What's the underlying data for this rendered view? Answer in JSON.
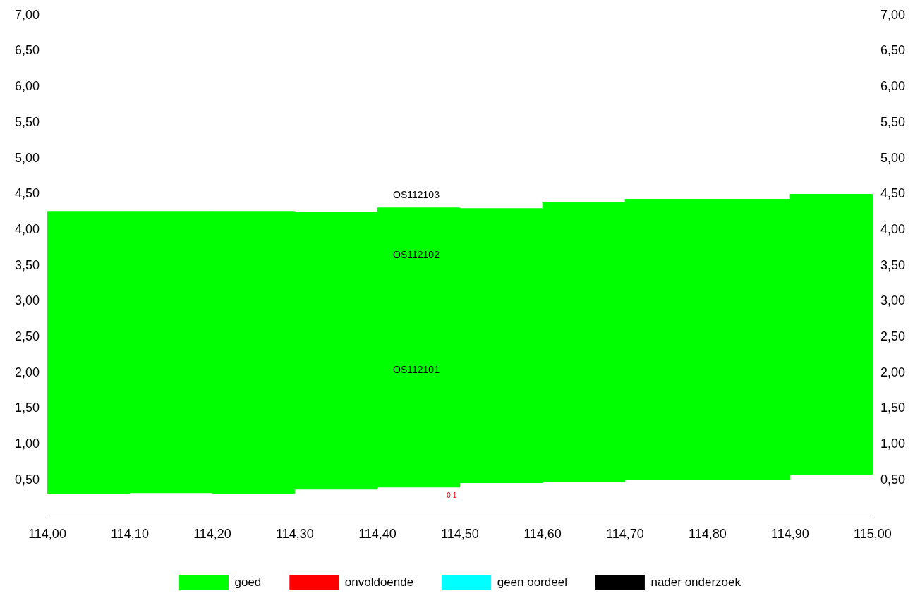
{
  "chart_data": {
    "type": "bar",
    "x": [
      114.05,
      114.15,
      114.25,
      114.35,
      114.45,
      114.55,
      114.65,
      114.75,
      114.85,
      114.95
    ],
    "series": [
      {
        "name": "goed",
        "color": "#00ff00",
        "base": [
          0.31,
          0.32,
          0.31,
          0.37,
          0.4,
          0.46,
          0.47,
          0.51,
          0.51,
          0.58
        ],
        "values": [
          3.95,
          3.94,
          3.95,
          3.88,
          3.91,
          3.84,
          3.91,
          3.92,
          3.92,
          3.92
        ]
      },
      {
        "name": "onvoldoende",
        "color": "#ff0000",
        "values": [
          null,
          null,
          null,
          null,
          null,
          null,
          null,
          null,
          null,
          null
        ]
      },
      {
        "name": "geen oordeel",
        "color": "#00ffff",
        "values": [
          null,
          null,
          null,
          null,
          null,
          null,
          null,
          null,
          null,
          null
        ]
      },
      {
        "name": "nader onderzoek",
        "color": "#000000",
        "values": [
          null,
          null,
          null,
          null,
          null,
          null,
          null,
          null,
          null,
          null
        ]
      }
    ],
    "xlim": [
      114,
      115
    ],
    "xticks": [
      {
        "value": 114,
        "label": "114,00"
      },
      {
        "value": 114.1,
        "label": "114,10"
      },
      {
        "value": 114.2,
        "label": "114,20"
      },
      {
        "value": 114.3,
        "label": "114,30"
      },
      {
        "value": 114.4,
        "label": "114,40"
      },
      {
        "value": 114.5,
        "label": "114,50"
      },
      {
        "value": 114.6,
        "label": "114,60"
      },
      {
        "value": 114.7,
        "label": "114,70"
      },
      {
        "value": 114.8,
        "label": "114,80"
      },
      {
        "value": 114.9,
        "label": "114,90"
      },
      {
        "value": 115,
        "label": "115,00"
      }
    ],
    "ylim": [
      0,
      7
    ],
    "yticks": [
      {
        "value": 0.5,
        "label": "0,50"
      },
      {
        "value": 1,
        "label": "1,00"
      },
      {
        "value": 1.5,
        "label": "1,50"
      },
      {
        "value": 2,
        "label": "2,00"
      },
      {
        "value": 2.5,
        "label": "2,50"
      },
      {
        "value": 3,
        "label": "3,00"
      },
      {
        "value": 3.5,
        "label": "3,50"
      },
      {
        "value": 4,
        "label": "4,00"
      },
      {
        "value": 4.5,
        "label": "4,50"
      },
      {
        "value": 5,
        "label": "5,00"
      },
      {
        "value": 5.5,
        "label": "5,50"
      },
      {
        "value": 6,
        "label": "6,00"
      },
      {
        "value": 6.5,
        "label": "6,50"
      },
      {
        "value": 7,
        "label": "7,00"
      }
    ],
    "y2lim": [
      0,
      7
    ],
    "y2ticks": [
      {
        "value": 0.5,
        "label": "0,50"
      },
      {
        "value": 1,
        "label": "1,00"
      },
      {
        "value": 1.5,
        "label": "1,50"
      },
      {
        "value": 2,
        "label": "2,00"
      },
      {
        "value": 2.5,
        "label": "2,50"
      },
      {
        "value": 3,
        "label": "3,00"
      },
      {
        "value": 3.5,
        "label": "3,50"
      },
      {
        "value": 4,
        "label": "4,00"
      },
      {
        "value": 4.5,
        "label": "4,50"
      },
      {
        "value": 5,
        "label": "5,00"
      },
      {
        "value": 5.5,
        "label": "5,50"
      },
      {
        "value": 6,
        "label": "6,00"
      },
      {
        "value": 6.5,
        "label": "6,50"
      },
      {
        "value": 7,
        "label": "7,00"
      }
    ],
    "annotations": [
      "OS112103",
      "OS112102",
      "OS112101",
      "0 1"
    ],
    "grid": false,
    "legend": "bottom"
  }
}
